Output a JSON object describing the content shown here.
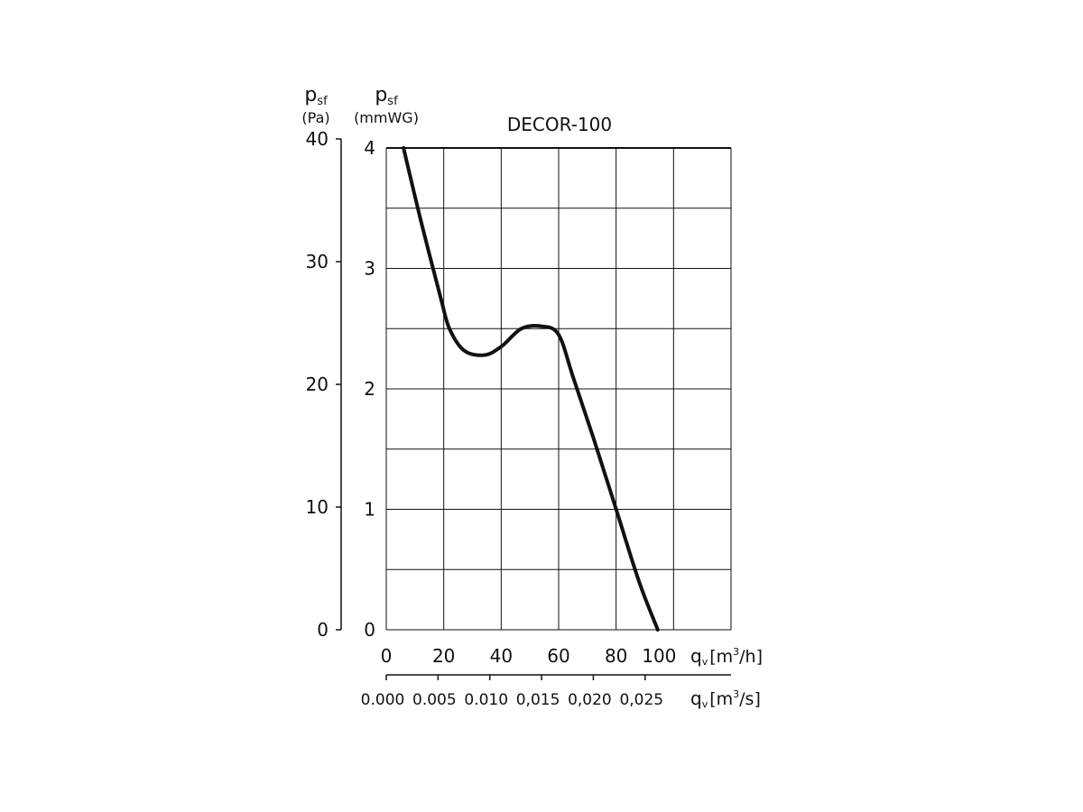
{
  "chart_data": {
    "type": "line",
    "title": "DECOR-100",
    "axes": {
      "y_left": {
        "label_main": "p",
        "label_sub": "sf",
        "unit": "(Pa)",
        "ticks": [
          "0",
          "10",
          "20",
          "30",
          "40"
        ],
        "range": [
          0,
          40
        ]
      },
      "y_right": {
        "label_main": "p",
        "label_sub": "sf",
        "unit": "(mmWG)",
        "ticks": [
          "0",
          "1",
          "2",
          "3",
          "4"
        ],
        "range": [
          0,
          4
        ]
      },
      "x_primary": {
        "ticks": [
          "0",
          "20",
          "40",
          "60",
          "80",
          "100"
        ],
        "label_main": "q",
        "label_sub": "v",
        "unit_pre": "[m",
        "unit_sup": "3",
        "unit_post": "/h]",
        "range": [
          0,
          120
        ]
      },
      "x_secondary": {
        "ticks": [
          "0.000",
          "0.005",
          "0.010",
          "0,015",
          "0,020",
          "0,025"
        ],
        "label_main": "q",
        "label_sub": "v",
        "unit_pre": "[m",
        "unit_sup": "3",
        "unit_post": "/s]"
      }
    },
    "grid": true,
    "series": [
      {
        "x": [
          6,
          12,
          19,
          22,
          27,
          34,
          40,
          47,
          54,
          60,
          65,
          72,
          80,
          88,
          94.5
        ],
        "y": [
          40,
          34,
          27.5,
          25,
          23.2,
          22.8,
          23.5,
          25,
          25.2,
          24.5,
          21,
          16,
          10,
          4,
          0
        ]
      }
    ]
  }
}
